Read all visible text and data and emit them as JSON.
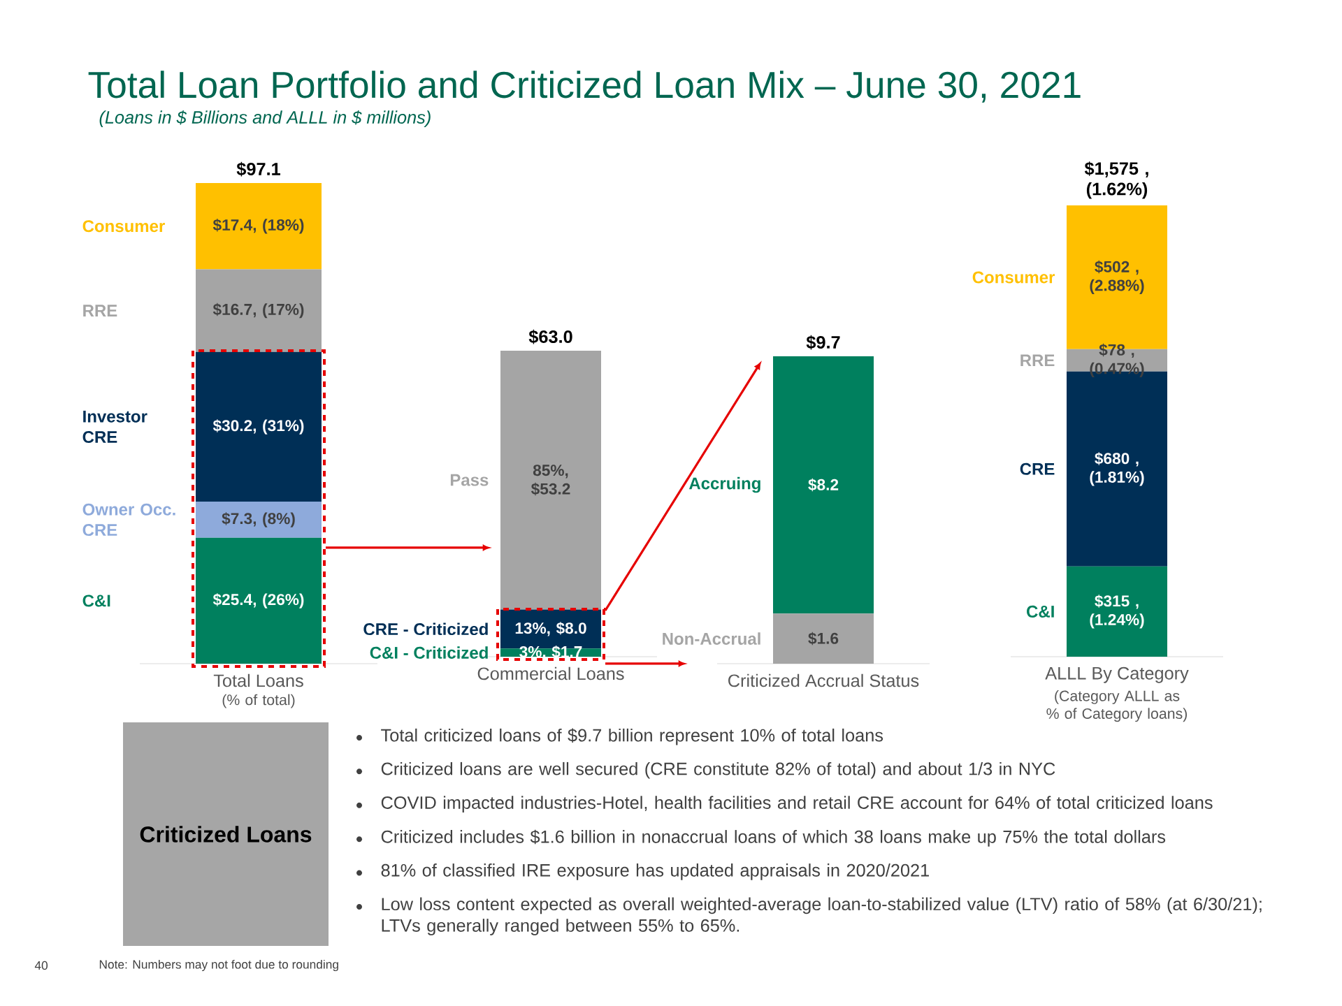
{
  "chart_data": [
    {
      "type": "bar",
      "stacked": true,
      "title": "Total Loan Portfolio and Criticized Loan Mix – June 30, 2021",
      "subtitle": "(Loans in $ Billions and ALLL in $ millions)",
      "categories": [
        "Total Loans"
      ],
      "xlabel": "(% of total)",
      "totals": [
        "$97.1"
      ],
      "annotations": [
        "Note: Numbers may not foot due to rounding",
        "40"
      ],
      "series": [
        {
          "name": "C&I",
          "color": "#00805e",
          "values": [
            25.4
          ],
          "value_labels": [
            "$25.4, (26%)"
          ]
        },
        {
          "name": "Owner Occ. CRE",
          "color": "#8eaadb",
          "values": [
            7.3
          ],
          "value_labels": [
            "$7.3, (8%)"
          ]
        },
        {
          "name": "Investor CRE",
          "color": "#002f56",
          "values": [
            30.2
          ],
          "value_labels": [
            "$30.2, (31%)"
          ]
        },
        {
          "name": "RRE",
          "color": "#a5a5a5",
          "values": [
            16.7
          ],
          "value_labels": [
            "$16.7, (17%)"
          ]
        },
        {
          "name": "Consumer",
          "color": "#ffc000",
          "values": [
            17.4
          ],
          "value_labels": [
            "$17.4, (18%)"
          ]
        }
      ]
    },
    {
      "type": "bar",
      "stacked": true,
      "categories": [
        "Commercial Loans"
      ],
      "totals": [
        "$63.0"
      ],
      "series": [
        {
          "name": "C&I - Criticized",
          "color": "#00805e",
          "values": [
            1.7
          ],
          "value_labels": [
            "3%, $1.7"
          ]
        },
        {
          "name": "CRE - Criticized",
          "color": "#002f56",
          "values": [
            8.0
          ],
          "value_labels": [
            "13%, $8.0"
          ]
        },
        {
          "name": "Pass",
          "color": "#a5a5a5",
          "values": [
            53.2
          ],
          "value_labels": [
            "85%, $53.2"
          ]
        }
      ]
    },
    {
      "type": "bar",
      "stacked": true,
      "categories": [
        "Criticized Accrual Status"
      ],
      "totals": [
        "$9.7"
      ],
      "series": [
        {
          "name": "Non-Accrual",
          "color": "#a5a5a5",
          "values": [
            1.6
          ],
          "value_labels": [
            "$1.6"
          ]
        },
        {
          "name": "Accruing",
          "color": "#00805e",
          "values": [
            8.2
          ],
          "value_labels": [
            "$8.2"
          ]
        }
      ]
    },
    {
      "type": "bar",
      "stacked": true,
      "categories": [
        "ALLL By Category"
      ],
      "xlabel": "(Category ALLL as % of Category loans)",
      "totals": [
        "$1,575 , (1.62%)"
      ],
      "series": [
        {
          "name": "C&I",
          "color": "#00805e",
          "values": [
            315
          ],
          "value_labels": [
            "$315 , (1.24%)"
          ]
        },
        {
          "name": "CRE",
          "color": "#002f56",
          "values": [
            680
          ],
          "value_labels": [
            "$680 , (1.81%)"
          ]
        },
        {
          "name": "RRE",
          "color": "#a5a5a5",
          "values": [
            78
          ],
          "value_labels": [
            "$78 , (0.47%)"
          ]
        },
        {
          "name": "Consumer",
          "color": "#ffc000",
          "values": [
            502
          ],
          "value_labels": [
            "$502 , (2.88%)"
          ]
        }
      ]
    },
    {
      "type": "other",
      "title": "Criticized Loans",
      "annotations": [
        "Total criticized loans of $9.7 billion represent 10% of total loans",
        "Criticized loans are well secured (CRE constitute 82% of total) and about 1/3 in NYC",
        "COVID impacted industries-Hotel, health facilities and retail CRE account for 64% of total criticized loans",
        "Criticized includes $1.6 billion in nonaccrual loans of which 38 loans make up 75% the total dollars",
        "81% of classified IRE exposure has updated appraisals in 2020/2021",
        "Low loss content expected as overall weighted-average loan-to-stabilized value (LTV) ratio of 58% (at 6/30/21);  LTVs generally ranged between 55% to 65%."
      ]
    }
  ]
}
